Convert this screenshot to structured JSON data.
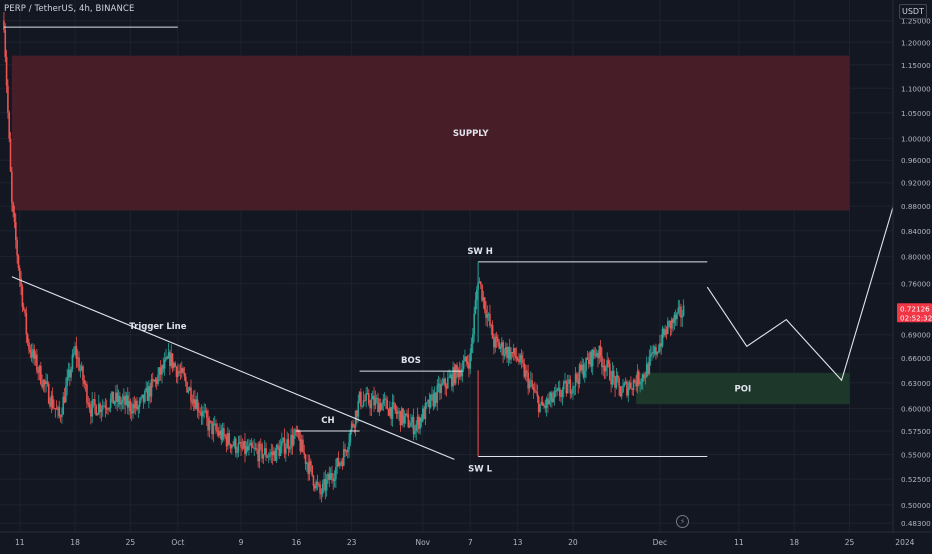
{
  "header": {
    "symbol_title": "PERP / TetherUS, 4h, BINANCE",
    "currency": "USDT"
  },
  "price_label": {
    "price": "0.72126",
    "countdown": "02:52:32"
  },
  "colors": {
    "background": "#131722",
    "up": "#26a69a",
    "down": "#ef5350",
    "supply_zone": "#4a1f29",
    "poi_zone": "#1e3a2b",
    "annotation_line": "#e0e3eb",
    "axis_text": "#b2b5be",
    "price_tag": "#f23645"
  },
  "icons": {
    "bolt": "lightning-bolt-icon"
  },
  "chart_data": {
    "type": "candlestick",
    "title": "PERP / TetherUS, 4h, BINANCE",
    "y_axis": {
      "ticks": [
        "1.25000",
        "1.20000",
        "1.15000",
        "1.10000",
        "1.05000",
        "1.00000",
        "0.96000",
        "0.92000",
        "0.88000",
        "0.84000",
        "0.80000",
        "0.76000",
        "0.72126",
        "0.69000",
        "0.66000",
        "0.63000",
        "0.60000",
        "0.57500",
        "0.55000",
        "0.52500",
        "0.50000",
        "0.48300"
      ],
      "range": [
        0.475,
        1.3
      ],
      "scale": "log"
    },
    "x_axis": {
      "ticks": [
        "11",
        "18",
        "25",
        "Oct",
        "9",
        "16",
        "23",
        "Nov",
        "7",
        "13",
        "20",
        "Dec",
        "11",
        "18",
        "25",
        "2024"
      ]
    },
    "grid": true,
    "series": [
      {
        "type": "close-path",
        "points": [
          [
            "2023-09-09",
            1.25
          ],
          [
            "2023-09-10",
            0.88
          ],
          [
            "2023-09-11",
            0.77
          ],
          [
            "2023-09-12",
            0.68
          ],
          [
            "2023-09-14",
            0.63
          ],
          [
            "2023-09-16",
            0.59
          ],
          [
            "2023-09-18",
            0.67
          ],
          [
            "2023-09-20",
            0.6
          ],
          [
            "2023-09-23",
            0.61
          ],
          [
            "2023-09-26",
            0.6
          ],
          [
            "2023-09-30",
            0.66
          ],
          [
            "2023-10-02",
            0.63
          ],
          [
            "2023-10-05",
            0.58
          ],
          [
            "2023-10-09",
            0.555
          ],
          [
            "2023-10-13",
            0.55
          ],
          [
            "2023-10-16",
            0.57
          ],
          [
            "2023-10-19",
            0.51
          ],
          [
            "2023-10-22",
            0.55
          ],
          [
            "2023-10-24",
            0.61
          ],
          [
            "2023-10-27",
            0.605
          ],
          [
            "2023-10-31",
            0.58
          ],
          [
            "2023-11-03",
            0.62
          ],
          [
            "2023-11-07",
            0.66
          ],
          [
            "2023-11-08",
            0.77
          ],
          [
            "2023-11-10",
            0.68
          ],
          [
            "2023-11-13",
            0.66
          ],
          [
            "2023-11-16",
            0.6
          ],
          [
            "2023-11-20",
            0.63
          ],
          [
            "2023-11-23",
            0.67
          ],
          [
            "2023-11-26",
            0.62
          ],
          [
            "2023-11-29",
            0.64
          ],
          [
            "2023-12-02",
            0.7
          ],
          [
            "2023-12-04",
            0.72126
          ]
        ]
      }
    ],
    "zones": [
      {
        "label": "SUPPLY",
        "from": "2023-09-10",
        "to": "2023-12-25",
        "low": 0.873,
        "high": 1.17
      },
      {
        "label": "POI",
        "from": "2023-11-28",
        "to": "2023-12-25",
        "low": 0.605,
        "high": 0.642
      }
    ],
    "annotations": [
      {
        "label": "Trigger Line",
        "kind": "line",
        "points": [
          [
            "2023-09-10",
            0.77
          ],
          [
            "2023-11-05",
            0.545
          ]
        ]
      },
      {
        "label": "CH",
        "kind": "hline",
        "from": "2023-10-16",
        "to": "2023-10-24",
        "price": 0.575
      },
      {
        "label": "BOS",
        "kind": "hline",
        "from": "2023-10-24",
        "to": "2023-11-06",
        "price": 0.644
      },
      {
        "label": "SW H",
        "kind": "hline",
        "from": "2023-11-08",
        "to": "2023-12-07",
        "price": 0.792
      },
      {
        "label": "SW L",
        "kind": "hline",
        "from": "2023-11-08",
        "to": "2023-12-07",
        "price": 0.548
      },
      {
        "label": "",
        "kind": "hline",
        "from": "2023-09-09",
        "to": "2023-10-01",
        "price": 1.235
      },
      {
        "label": "",
        "kind": "projection",
        "points": [
          [
            "2023-12-07",
            0.755
          ],
          [
            "2023-12-12",
            0.675
          ],
          [
            "2023-12-17",
            0.71
          ],
          [
            "2023-12-24",
            0.633
          ],
          [
            "2024-01-01",
            0.948
          ]
        ]
      }
    ]
  }
}
